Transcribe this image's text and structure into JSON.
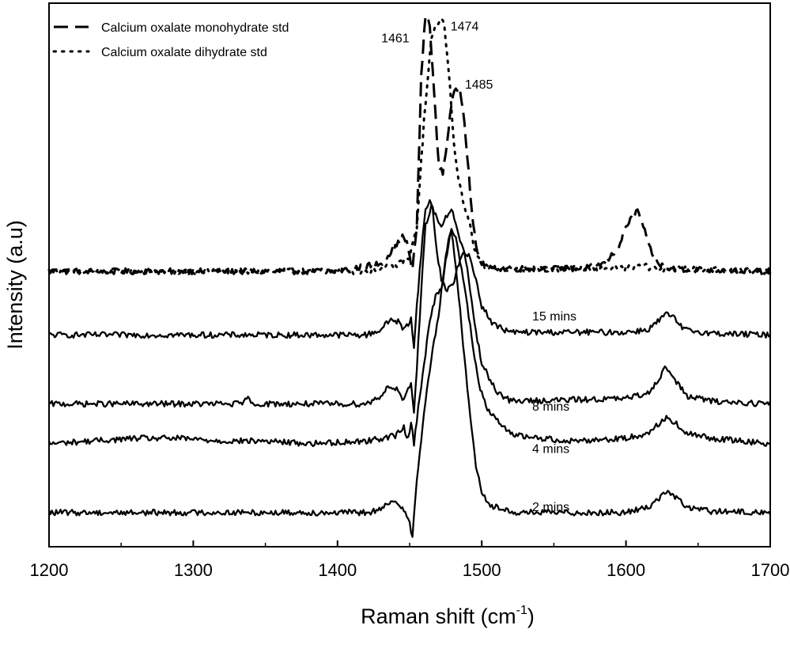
{
  "chart_data": {
    "type": "line",
    "title": "",
    "xlabel": "Raman shift (cm",
    "xlabel_sup": "-1",
    "xlabel_close": ")",
    "ylabel": "Intensity (a.u)",
    "xlim": [
      1200,
      1700
    ],
    "ylim": [
      0,
      100
    ],
    "x_ticks": [
      1200,
      1300,
      1400,
      1500,
      1600,
      1700
    ],
    "x_tick_labels": [
      "1200",
      "1300",
      "1400",
      "1500",
      "1600",
      "1700"
    ],
    "y_ticks_shown": false,
    "grid": false,
    "legend_position": "top-left",
    "colors": {
      "line": "#000000",
      "axes": "#000000",
      "background": "#ffffff"
    },
    "legend": [
      {
        "label": "Calcium oxalate monohydrate std",
        "style": "dashed",
        "series_index": 0
      },
      {
        "label": "Calcium oxalate dihydrate std",
        "style": "dotted",
        "series_index": 1
      }
    ],
    "annotations": [
      {
        "text": "1461",
        "x": 1461,
        "y": 98
      },
      {
        "text": "1474",
        "x": 1474,
        "y": 99
      },
      {
        "text": "1485",
        "x": 1485,
        "y": 86
      },
      {
        "text": "15 mins",
        "x": 1535,
        "y": 43
      },
      {
        "text": "8 mins",
        "x": 1535,
        "y": 26
      },
      {
        "text": "4 mins",
        "x": 1535,
        "y": 18
      },
      {
        "text": "2 mins",
        "x": 1535,
        "y": 7
      }
    ],
    "series": [
      {
        "name": "Calcium oxalate monohydrate std",
        "style": "dashed",
        "baseline": 51.5,
        "x": [
          1200,
          1400,
          1430,
          1440,
          1445,
          1448,
          1450,
          1452,
          1455,
          1458,
          1461,
          1464,
          1467,
          1470,
          1473,
          1476,
          1479,
          1482,
          1485,
          1488,
          1491,
          1494,
          1497,
          1500,
          1505,
          1520,
          1570,
          1585,
          1595,
          1600,
          1605,
          1608,
          1612,
          1616,
          1622,
          1630,
          1700
        ],
        "values": [
          51.5,
          51.5,
          53,
          56,
          58,
          57,
          54,
          52,
          60,
          88,
          100,
          98,
          85,
          72,
          70,
          76,
          83,
          86,
          86,
          80,
          70,
          60,
          55,
          53,
          52,
          52,
          52,
          53,
          56,
          60,
          62,
          63,
          60,
          56,
          53,
          52,
          51.5
        ]
      },
      {
        "name": "Calcium oxalate dihydrate std",
        "style": "dotted",
        "baseline": 51.5,
        "x": [
          1200,
          1420,
          1440,
          1450,
          1455,
          1460,
          1465,
          1468,
          1471,
          1474,
          1477,
          1480,
          1483,
          1486,
          1489,
          1492,
          1495,
          1500,
          1505,
          1520,
          1600,
          1612,
          1620,
          1700
        ],
        "values": [
          51.5,
          51.5,
          52.5,
          54,
          60,
          80,
          95,
          98,
          99,
          98,
          90,
          78,
          70,
          66,
          63,
          60,
          56,
          53,
          52,
          52,
          52,
          52.5,
          52,
          51.5
        ]
      },
      {
        "name": "",
        "label": "15 mins",
        "style": "solid",
        "baseline": 39.5,
        "x": [
          1200,
          1420,
          1430,
          1437,
          1442,
          1446,
          1449,
          1451,
          1453,
          1455,
          1458,
          1461,
          1464,
          1466,
          1469,
          1472,
          1476,
          1480,
          1484,
          1488,
          1492,
          1496,
          1500,
          1508,
          1520,
          1600,
          1615,
          1622,
          1628,
          1634,
          1640,
          1660,
          1700
        ],
        "values": [
          39.5,
          39.5,
          40.5,
          42.5,
          42,
          40.5,
          41.5,
          43,
          37,
          45,
          55,
          63,
          65,
          63,
          55,
          50,
          48,
          49,
          53,
          55,
          54,
          50,
          45,
          41.5,
          40,
          40,
          40.5,
          42,
          43.5,
          42.5,
          40.5,
          39.8,
          39.5
        ]
      },
      {
        "name": "",
        "label": "8 mins",
        "style": "solid",
        "baseline": 26.5,
        "x": [
          1200,
          1335,
          1337,
          1340,
          1420,
          1430,
          1436,
          1442,
          1446,
          1449,
          1451,
          1453,
          1455,
          1458,
          1461,
          1465,
          1468,
          1472,
          1476,
          1480,
          1484,
          1488,
          1492,
          1496,
          1500,
          1510,
          1520,
          1600,
          1615,
          1622,
          1628,
          1634,
          1642,
          1660,
          1700
        ],
        "values": [
          26.5,
          26.5,
          28,
          26.5,
          26.5,
          28,
          30,
          29,
          27,
          29,
          30,
          25,
          33,
          48,
          60,
          64,
          62,
          60,
          62,
          63,
          58,
          55,
          48,
          40,
          34,
          29,
          27,
          27.5,
          28.5,
          31,
          33.5,
          31,
          28,
          27,
          26.5
        ]
      },
      {
        "name": "",
        "label": "4 mins",
        "style": "solid",
        "baseline": 19,
        "x": [
          1200,
          1230,
          1260,
          1290,
          1320,
          1350,
          1380,
          1420,
          1440,
          1446,
          1449,
          1451,
          1453,
          1456,
          1460,
          1464,
          1468,
          1472,
          1476,
          1479,
          1482,
          1486,
          1490,
          1494,
          1498,
          1505,
          1515,
          1525,
          1560,
          1600,
          1615,
          1622,
          1628,
          1634,
          1640,
          1660,
          1700
        ],
        "values": [
          19,
          19.5,
          20,
          20,
          19.5,
          19.5,
          19,
          19.5,
          20.5,
          22,
          20,
          23,
          19,
          26,
          34,
          42,
          47,
          48,
          55,
          60,
          58,
          52,
          45,
          37,
          30,
          25,
          22,
          20.5,
          19.5,
          20,
          21,
          22.5,
          24,
          23,
          21,
          20,
          19
        ]
      },
      {
        "name": "",
        "label": "2 mins",
        "style": "solid",
        "baseline": 6,
        "x": [
          1200,
          1420,
          1430,
          1437,
          1443,
          1447,
          1450,
          1452,
          1455,
          1460,
          1465,
          1470,
          1474,
          1477,
          1479,
          1481,
          1484,
          1488,
          1492,
          1496,
          1500,
          1505,
          1515,
          1525,
          1600,
          1615,
          1622,
          1628,
          1634,
          1642,
          1660,
          1700
        ],
        "values": [
          6,
          6,
          6.5,
          8,
          7.5,
          6.5,
          4,
          1.5,
          12,
          25,
          35,
          43,
          52,
          58,
          59,
          55,
          47,
          35,
          24,
          15,
          10,
          7.5,
          6.5,
          6,
          6,
          7,
          8.5,
          10,
          9,
          7,
          6.2,
          6
        ]
      }
    ]
  }
}
